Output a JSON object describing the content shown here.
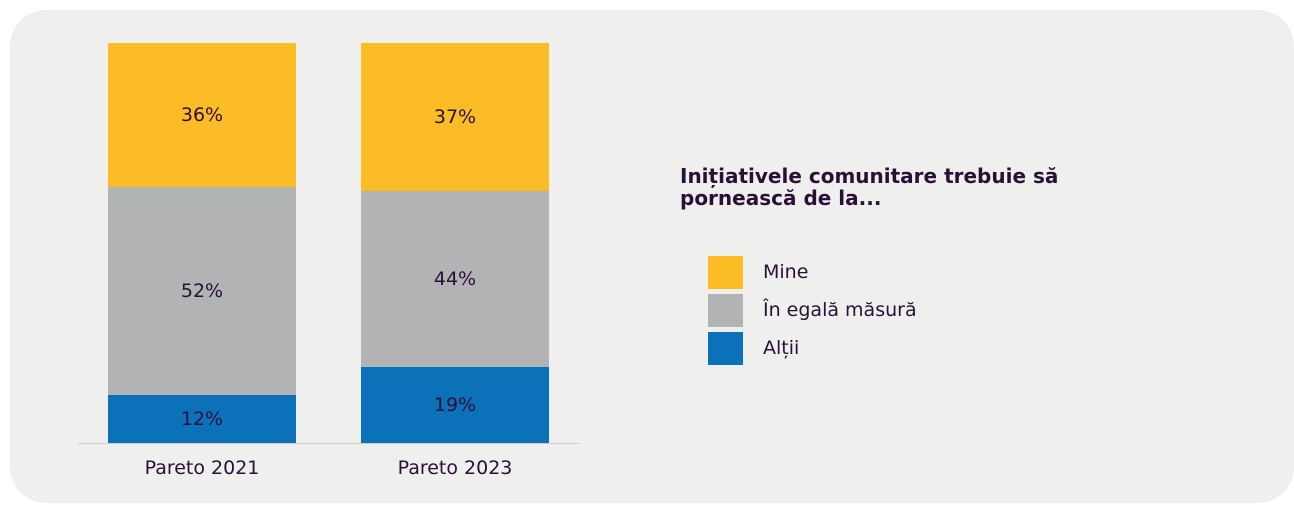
{
  "chart_data": {
    "type": "bar",
    "stacked": true,
    "categories": [
      "Pareto 2021",
      "Pareto 2023"
    ],
    "series": [
      {
        "name": "Mine",
        "color": "#fbbc25",
        "values": [
          36,
          37
        ],
        "labels": [
          "36%",
          "37%"
        ]
      },
      {
        "name": "În egală măsură",
        "color": "#b2b3b4",
        "values": [
          52,
          44
        ],
        "labels": [
          "52%",
          "44%"
        ]
      },
      {
        "name": "Alții",
        "color": "#0b71b9",
        "values": [
          12,
          19
        ],
        "labels": [
          "12%",
          "19%"
        ]
      }
    ],
    "ylim": [
      0,
      100
    ],
    "grid": false,
    "legend_title": "Inițiativele comunitare trebuie să pornească de la...",
    "legend_position": "right"
  }
}
